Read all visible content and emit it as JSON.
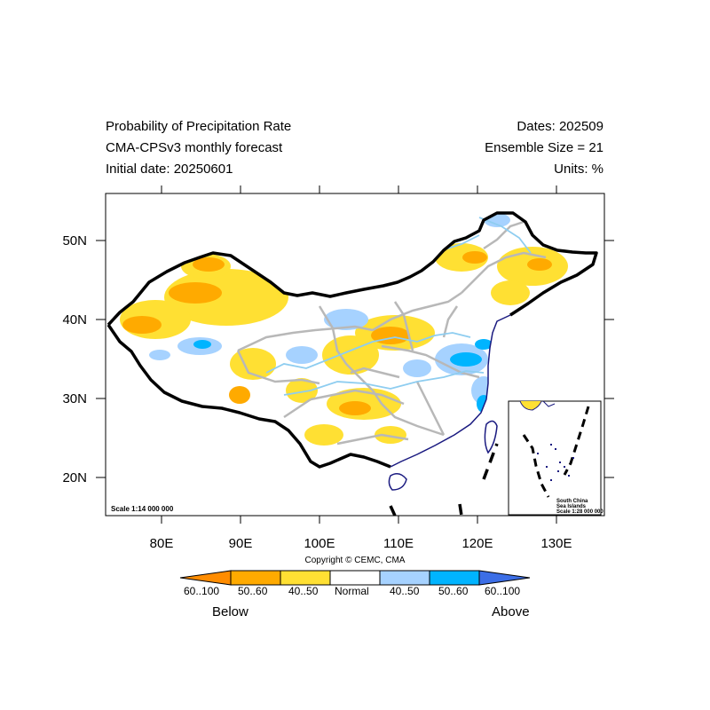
{
  "header": {
    "title_lines": [
      "Probability of Precipitation Rate",
      "CMA-CPSv3 monthly forecast",
      "Initial date: 20250601"
    ],
    "info_lines": [
      "Dates: 202509",
      "Ensemble Size = 21",
      "Units: %"
    ]
  },
  "axes": {
    "lon_ticks": [
      "80E",
      "90E",
      "100E",
      "110E",
      "120E",
      "130E"
    ],
    "lat_ticks": [
      "50N",
      "40N",
      "30N",
      "20N"
    ],
    "lon_range": [
      73,
      136
    ],
    "lat_range": [
      15,
      56
    ]
  },
  "map": {
    "scale_label": "Scale 1:14 000 000",
    "inset": {
      "lines": [
        "South China",
        "Sea Islands",
        "Scale 1:28 000 000"
      ]
    }
  },
  "copyright": "Copyright © CEMC, CMA",
  "legend": {
    "labels": [
      "60..100",
      "50..60",
      "40..50",
      "Normal",
      "40..50",
      "50..60",
      "60..100"
    ],
    "colors": [
      "#ff8c00",
      "#ffaa00",
      "#ffe033",
      "#ffffff",
      "#a6d2ff",
      "#00b4ff",
      "#3c6ee6"
    ],
    "below_label": "Below",
    "above_label": "Above"
  }
}
